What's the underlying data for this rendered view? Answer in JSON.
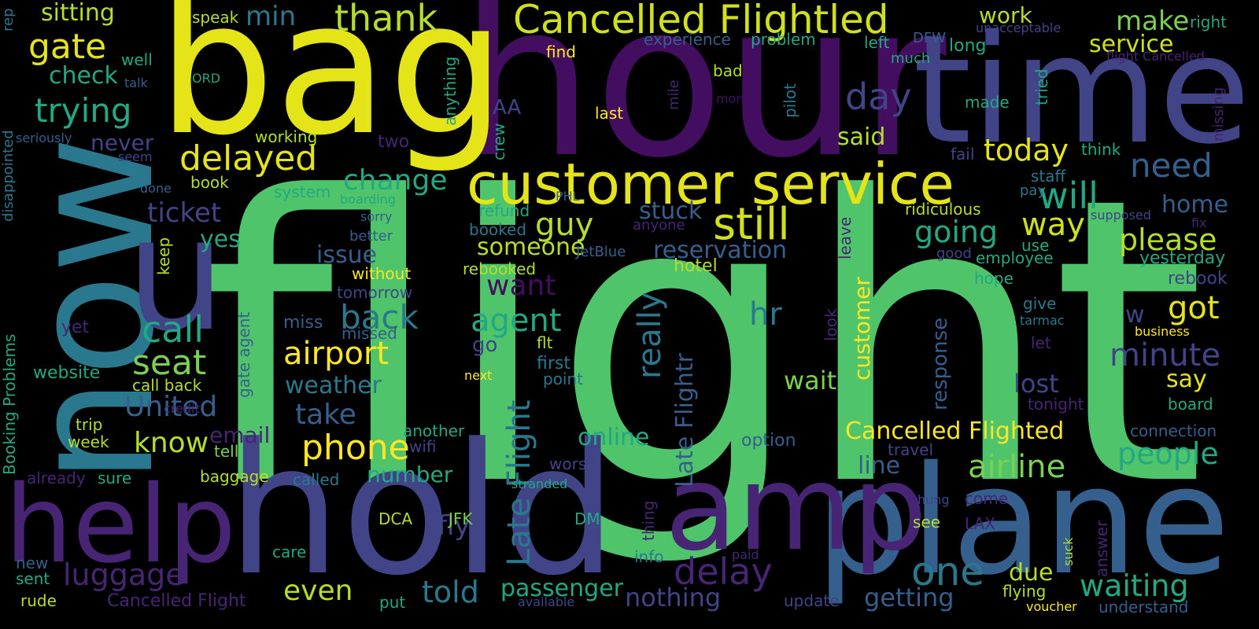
{
  "palette": {
    "background": "#000000",
    "green": "#4fc46a",
    "yellow": "#e5e419",
    "dark_purple": "#440e60",
    "indigo": "#414487",
    "blue": "#2a788e",
    "teal": "#22a884",
    "lime": "#b5de2b",
    "light_green": "#7ad151",
    "slate": "#355f8d",
    "deep_purple": "#482475"
  },
  "words": [
    {
      "text": "flight",
      "color": "#4fc46a"
    },
    {
      "text": "hour",
      "color": "#440e60"
    },
    {
      "text": "bag",
      "color": "#e5e419"
    },
    {
      "text": "now",
      "color": "#2a788e"
    },
    {
      "text": "time",
      "color": "#414487"
    },
    {
      "text": "hold",
      "color": "#414487"
    },
    {
      "text": "plane",
      "color": "#355f8d"
    },
    {
      "text": "help",
      "color": "#482475"
    },
    {
      "text": "amp",
      "color": "#482475"
    },
    {
      "text": "u",
      "color": "#414487"
    },
    {
      "text": "customer service",
      "color": "#e5e419"
    },
    {
      "text": "Cancelled Flightled",
      "color": "#d0e11c"
    },
    {
      "text": "still",
      "color": "#d0e11c"
    },
    {
      "text": "thank",
      "color": "#b5de2b"
    },
    {
      "text": "delayed",
      "color": "#e5e419"
    },
    {
      "text": "gate",
      "color": "#e5e419"
    },
    {
      "text": "trying",
      "color": "#22a884"
    },
    {
      "text": "call",
      "color": "#22a884"
    },
    {
      "text": "seat",
      "color": "#7ad151"
    },
    {
      "text": "airport",
      "color": "#fde725"
    },
    {
      "text": "phone",
      "color": "#fde725"
    },
    {
      "text": "agent",
      "color": "#22a884"
    },
    {
      "text": "back",
      "color": "#2a788e"
    },
    {
      "text": "really",
      "color": "#2a788e"
    },
    {
      "text": "delay",
      "color": "#482475"
    },
    {
      "text": "one",
      "color": "#2a788e"
    },
    {
      "text": "day",
      "color": "#414487"
    },
    {
      "text": "will",
      "color": "#22a884"
    },
    {
      "text": "need",
      "color": "#355f8d"
    },
    {
      "text": "today",
      "color": "#e5e419"
    },
    {
      "text": "going",
      "color": "#22a884"
    },
    {
      "text": "way",
      "color": "#d0e11c"
    },
    {
      "text": "please",
      "color": "#b5de2b"
    },
    {
      "text": "got",
      "color": "#e5e419"
    },
    {
      "text": "minute",
      "color": "#414487"
    },
    {
      "text": "people",
      "color": "#22a884"
    },
    {
      "text": "airline",
      "color": "#7ad151"
    },
    {
      "text": "waiting",
      "color": "#22a884"
    },
    {
      "text": "make",
      "color": "#7ad151"
    },
    {
      "text": "service",
      "color": "#d0e11c"
    },
    {
      "text": "work",
      "color": "#b5de2b"
    },
    {
      "text": "min",
      "color": "#2a788e"
    },
    {
      "text": "sitting",
      "color": "#b5de2b"
    },
    {
      "text": "check",
      "color": "#22a884"
    },
    {
      "text": "ticket",
      "color": "#414487"
    },
    {
      "text": "never",
      "color": "#414487"
    },
    {
      "text": "United",
      "color": "#355f8d"
    },
    {
      "text": "know",
      "color": "#b5de2b"
    },
    {
      "text": "email",
      "color": "#482475"
    },
    {
      "text": "luggage",
      "color": "#482475"
    },
    {
      "text": "even",
      "color": "#b5de2b"
    },
    {
      "text": "told",
      "color": "#2a788e"
    },
    {
      "text": "passenger",
      "color": "#22a884"
    },
    {
      "text": "nothing",
      "color": "#414487"
    },
    {
      "text": "getting",
      "color": "#355f8d"
    },
    {
      "text": "change",
      "color": "#22a884"
    },
    {
      "text": "guy",
      "color": "#b5de2b"
    },
    {
      "text": "stuck",
      "color": "#355f8d"
    },
    {
      "text": "reservation",
      "color": "#355f8d"
    },
    {
      "text": "someone",
      "color": "#b5de2b"
    },
    {
      "text": "want",
      "color": "#440e60"
    },
    {
      "text": "issue",
      "color": "#355f8d"
    },
    {
      "text": "yes",
      "color": "#22a884"
    },
    {
      "text": "take",
      "color": "#355f8d"
    },
    {
      "text": "weather",
      "color": "#2a788e"
    },
    {
      "text": "Late Flight",
      "color": "#2a788e"
    },
    {
      "text": "Late Flightr",
      "color": "#355f8d"
    },
    {
      "text": "hr",
      "color": "#2a788e"
    },
    {
      "text": "customer",
      "color": "#fde725"
    },
    {
      "text": "response",
      "color": "#355f8d"
    },
    {
      "text": "wait",
      "color": "#7ad151"
    },
    {
      "text": "lost",
      "color": "#414487"
    },
    {
      "text": "say",
      "color": "#e5e419"
    },
    {
      "text": "Cancelled Flighted",
      "color": "#fde725"
    },
    {
      "text": "online",
      "color": "#22a884"
    },
    {
      "text": "number",
      "color": "#22a884"
    },
    {
      "text": "fly",
      "color": "#414487"
    },
    {
      "text": "line",
      "color": "#355f8d"
    },
    {
      "text": "due",
      "color": "#b5de2b"
    },
    {
      "text": "home",
      "color": "#355f8d"
    },
    {
      "text": "w",
      "color": "#414487"
    },
    {
      "text": "said",
      "color": "#b5de2b"
    },
    {
      "text": "AA",
      "color": "#414487"
    },
    {
      "text": "working",
      "color": "#b5de2b"
    },
    {
      "text": "book",
      "color": "#b5de2b"
    },
    {
      "text": "system",
      "color": "#22a884"
    },
    {
      "text": "baggage",
      "color": "#b5de2b"
    },
    {
      "text": "called",
      "color": "#2a788e"
    },
    {
      "text": "trip",
      "color": "#b5de2b"
    },
    {
      "text": "week",
      "color": "#b5de2b"
    },
    {
      "text": "website",
      "color": "#22a884"
    },
    {
      "text": "new",
      "color": "#355f8d"
    },
    {
      "text": "sent",
      "color": "#22a884"
    },
    {
      "text": "rude",
      "color": "#b5de2b"
    },
    {
      "text": "Cancelled Flight",
      "color": "#482475"
    },
    {
      "text": "care",
      "color": "#22a884"
    },
    {
      "text": "put",
      "color": "#22a884"
    },
    {
      "text": "DCA",
      "color": "#b5de2b"
    },
    {
      "text": "JFK",
      "color": "#7ad151"
    },
    {
      "text": "DM",
      "color": "#22a884"
    },
    {
      "text": "tell",
      "color": "#7ad151"
    },
    {
      "text": "already",
      "color": "#482475"
    },
    {
      "text": "sure",
      "color": "#22a884"
    },
    {
      "text": "Booking Problems",
      "color": "#22a884"
    },
    {
      "text": "disappointed",
      "color": "#2a788e"
    },
    {
      "text": "rep",
      "color": "#2a788e"
    },
    {
      "text": "seriously",
      "color": "#355f8d"
    },
    {
      "text": "gate agent",
      "color": "#355f8d"
    },
    {
      "text": "call back",
      "color": "#b5de2b"
    },
    {
      "text": "credit",
      "color": "#482475"
    },
    {
      "text": "yet",
      "color": "#482475"
    },
    {
      "text": "speak",
      "color": "#b5de2b"
    },
    {
      "text": "well",
      "color": "#22a884"
    },
    {
      "text": "talk",
      "color": "#355f8d"
    },
    {
      "text": "ORD",
      "color": "#22a884"
    },
    {
      "text": "seem",
      "color": "#414487"
    },
    {
      "text": "done",
      "color": "#355f8d"
    },
    {
      "text": "boarding",
      "color": "#22a884"
    },
    {
      "text": "sorry",
      "color": "#355f8d"
    },
    {
      "text": "two",
      "color": "#482475"
    },
    {
      "text": "anything",
      "color": "#22a884"
    },
    {
      "text": "crew",
      "color": "#22a884"
    },
    {
      "text": "find",
      "color": "#fde725"
    },
    {
      "text": "last",
      "color": "#fde725"
    },
    {
      "text": "experience",
      "color": "#355f8d"
    },
    {
      "text": "problem",
      "color": "#22a884"
    },
    {
      "text": "bad",
      "color": "#b5de2b"
    },
    {
      "text": "mile",
      "color": "#482475"
    },
    {
      "text": "money",
      "color": "#440e60"
    },
    {
      "text": "pilot",
      "color": "#2a788e"
    },
    {
      "text": "left",
      "color": "#22a884"
    },
    {
      "text": "DFW",
      "color": "#355f8d"
    },
    {
      "text": "much",
      "color": "#22a884"
    },
    {
      "text": "long",
      "color": "#22a884"
    },
    {
      "text": "made",
      "color": "#22a884"
    },
    {
      "text": "tried",
      "color": "#22a884"
    },
    {
      "text": "unacceptable",
      "color": "#414487"
    },
    {
      "text": "right",
      "color": "#22a884"
    },
    {
      "text": "flight Cancelled",
      "color": "#482475"
    },
    {
      "text": "missing",
      "color": "#482475"
    },
    {
      "text": "think",
      "color": "#22a884"
    },
    {
      "text": "fail",
      "color": "#414487"
    },
    {
      "text": "staff",
      "color": "#2a788e"
    },
    {
      "text": "pay",
      "color": "#2a788e"
    },
    {
      "text": "supposed",
      "color": "#414487"
    },
    {
      "text": "fix",
      "color": "#482475"
    },
    {
      "text": "ridiculous",
      "color": "#b5de2b"
    },
    {
      "text": "refund",
      "color": "#22a884"
    },
    {
      "text": "booked",
      "color": "#2a788e"
    },
    {
      "text": "rebooked",
      "color": "#b5de2b"
    },
    {
      "text": "anyone",
      "color": "#482475"
    },
    {
      "text": "JetBlue",
      "color": "#355f8d"
    },
    {
      "text": "better",
      "color": "#355f8d"
    },
    {
      "text": "without",
      "color": "#fde725"
    },
    {
      "text": "tomorrow",
      "color": "#414487"
    },
    {
      "text": "keep",
      "color": "#b5de2b"
    },
    {
      "text": "PHL",
      "color": "#355f8d"
    },
    {
      "text": "hotel",
      "color": "#b5de2b"
    },
    {
      "text": "leave",
      "color": "#482475"
    },
    {
      "text": "use",
      "color": "#22a884"
    },
    {
      "text": "good",
      "color": "#414487"
    },
    {
      "text": "employee",
      "color": "#22a884"
    },
    {
      "text": "yesterday",
      "color": "#22a884"
    },
    {
      "text": "hope",
      "color": "#22a884"
    },
    {
      "text": "rebook",
      "color": "#414487"
    },
    {
      "text": "give",
      "color": "#2a788e"
    },
    {
      "text": "tarmac",
      "color": "#2a788e"
    },
    {
      "text": "business",
      "color": "#fde725"
    },
    {
      "text": "let",
      "color": "#482475"
    },
    {
      "text": "tonight",
      "color": "#482475"
    },
    {
      "text": "board",
      "color": "#22a884"
    },
    {
      "text": "connection",
      "color": "#355f8d"
    },
    {
      "text": "look",
      "color": "#482475"
    },
    {
      "text": "miss",
      "color": "#355f8d"
    },
    {
      "text": "missed",
      "color": "#355f8d"
    },
    {
      "text": "go",
      "color": "#414487"
    },
    {
      "text": "flt",
      "color": "#b5de2b"
    },
    {
      "text": "first",
      "color": "#2a788e"
    },
    {
      "text": "point",
      "color": "#2a788e"
    },
    {
      "text": "next",
      "color": "#fde725"
    },
    {
      "text": "another",
      "color": "#22a884"
    },
    {
      "text": "wifi",
      "color": "#414487"
    },
    {
      "text": "option",
      "color": "#355f8d"
    },
    {
      "text": "stranded",
      "color": "#22a884"
    },
    {
      "text": "thing",
      "color": "#482475"
    },
    {
      "text": "worst",
      "color": "#414487"
    },
    {
      "text": "travel",
      "color": "#414487"
    },
    {
      "text": "hung",
      "color": "#414487"
    },
    {
      "text": "come",
      "color": "#482475"
    },
    {
      "text": "see",
      "color": "#b5de2b"
    },
    {
      "text": "LAX",
      "color": "#482475"
    },
    {
      "text": "answer",
      "color": "#482475"
    },
    {
      "text": "suck",
      "color": "#b5de2b"
    },
    {
      "text": "info",
      "color": "#2a788e"
    },
    {
      "text": "paid",
      "color": "#482475"
    },
    {
      "text": "update",
      "color": "#414487"
    },
    {
      "text": "available",
      "color": "#414487"
    },
    {
      "text": "flying",
      "color": "#b5de2b"
    },
    {
      "text": "voucher",
      "color": "#fde725"
    },
    {
      "text": "understand",
      "color": "#355f8d"
    }
  ]
}
